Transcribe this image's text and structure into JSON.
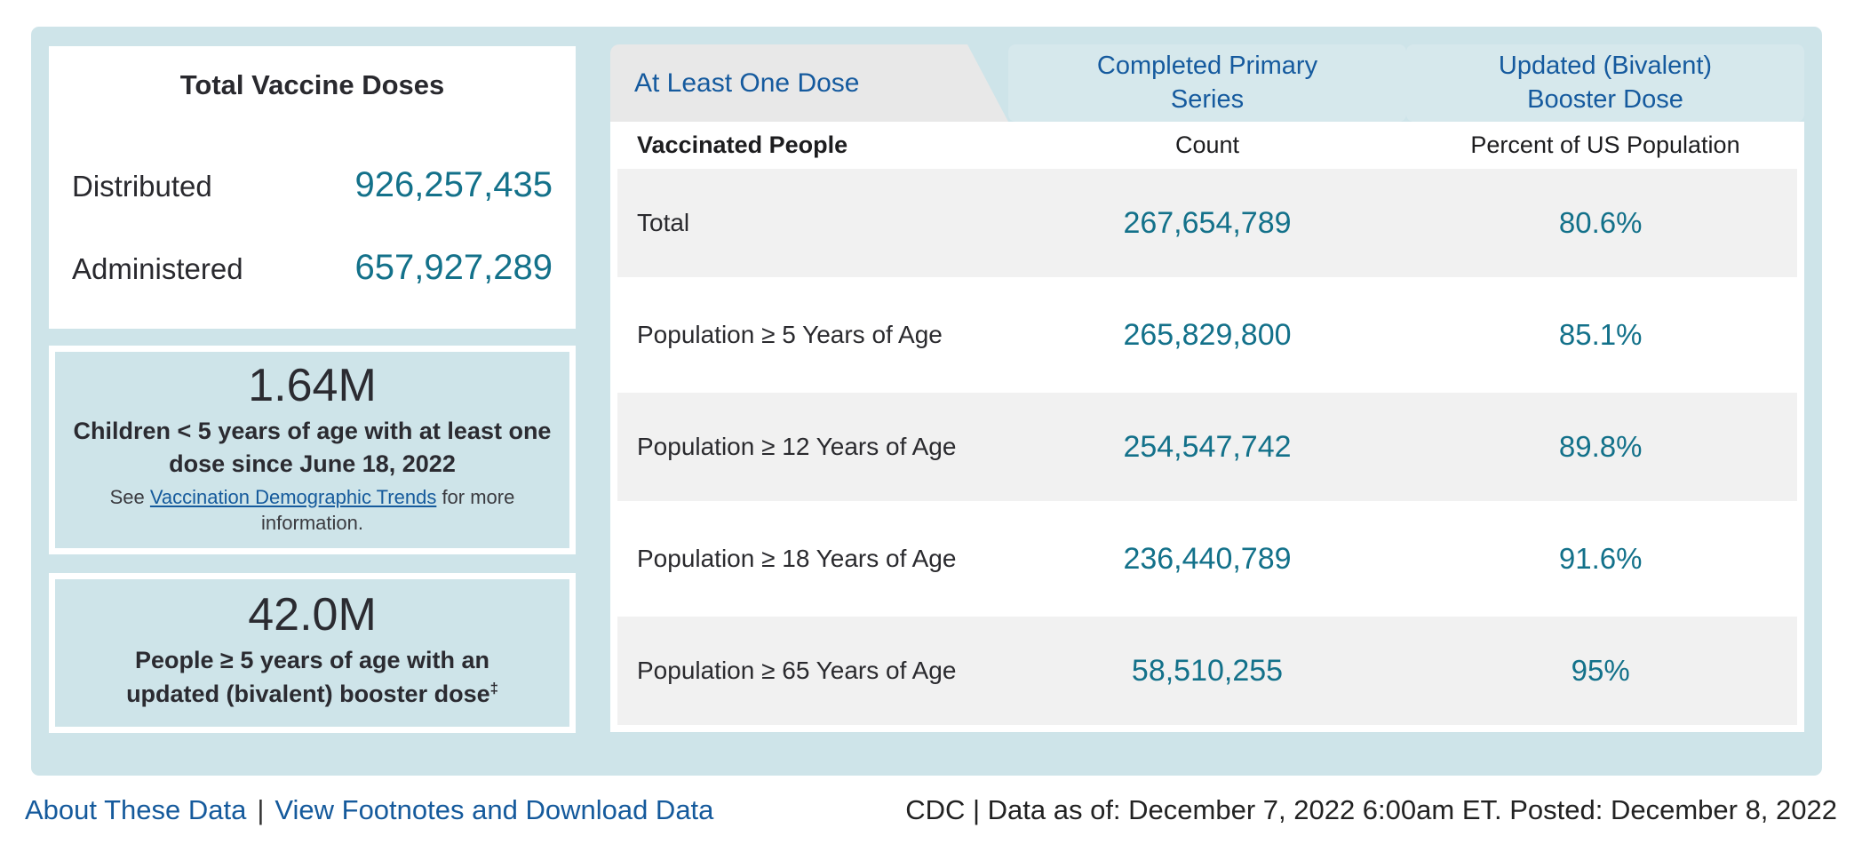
{
  "colors": {
    "container_bg": "#cee4e9",
    "teal_value": "#13718a",
    "link_blue": "#155a9c",
    "active_tab_bg": "#e8e8e8",
    "row_alt_bg": "#f1f1f1",
    "dark_text": "#29292e"
  },
  "left_panel": {
    "total_card": {
      "title": "Total Vaccine Doses",
      "distributed_label": "Distributed",
      "distributed_value": "926,257,435",
      "administered_label": "Administered",
      "administered_value": "657,927,289"
    },
    "children_card": {
      "stat": "1.64M",
      "description": "Children < 5 years of age with at least one dose since June 18, 2022",
      "note_prefix": "See ",
      "note_link": "Vaccination Demographic Trends",
      "note_suffix": " for more information."
    },
    "booster_card": {
      "stat": "42.0M",
      "description": "People ≥ 5 years of age with an updated (bivalent) booster dose",
      "footnote_marker": "‡"
    }
  },
  "tabs": [
    {
      "label": "At Least One Dose",
      "state": "active"
    },
    {
      "label": "Completed Primary Series",
      "state": "inactive"
    },
    {
      "label": "Updated (Bivalent) Booster Dose",
      "state": "inactive"
    }
  ],
  "table": {
    "header": {
      "col1": "Vaccinated People",
      "col2": "Count",
      "col3": "Percent of US Population"
    },
    "rows": [
      {
        "label": "Total",
        "count": "267,654,789",
        "percent": "80.6%"
      },
      {
        "label": "Population ≥ 5 Years of Age",
        "count": "265,829,800",
        "percent": "85.1%"
      },
      {
        "label": "Population ≥ 12 Years of Age",
        "count": "254,547,742",
        "percent": "89.8%"
      },
      {
        "label": "Population ≥ 18 Years of Age",
        "count": "236,440,789",
        "percent": "91.6%"
      },
      {
        "label": "Population ≥ 65 Years of Age",
        "count": "58,510,255",
        "percent": "95%"
      }
    ]
  },
  "footer": {
    "link_about": "About These Data",
    "separator": "|",
    "link_footnotes": "View Footnotes and Download Data",
    "source": "CDC | Data as of: December 7, 2022 6:00am ET. Posted: December 8, 2022"
  }
}
